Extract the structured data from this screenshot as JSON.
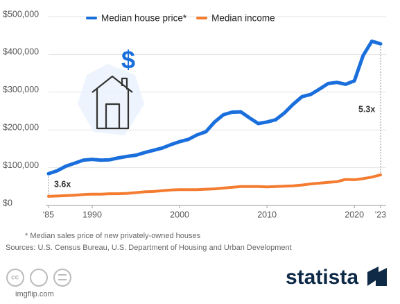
{
  "chart_data": {
    "type": "line",
    "x": [
      1985,
      1986,
      1987,
      1988,
      1989,
      1990,
      1991,
      1992,
      1993,
      1994,
      1995,
      1996,
      1997,
      1998,
      1999,
      2000,
      2001,
      2002,
      2003,
      2004,
      2005,
      2006,
      2007,
      2008,
      2009,
      2010,
      2011,
      2012,
      2013,
      2014,
      2015,
      2016,
      2017,
      2018,
      2019,
      2020,
      2021,
      2022,
      2023
    ],
    "series": [
      {
        "name": "Median house price*",
        "color": "#1a6fdc",
        "values": [
          84000,
          92000,
          104000,
          112000,
          120000,
          122000,
          120000,
          121000,
          126000,
          130000,
          133000,
          140000,
          146000,
          152000,
          161000,
          169000,
          175000,
          187000,
          195000,
          221000,
          240000,
          247000,
          248000,
          232000,
          217000,
          221000,
          227000,
          245000,
          268000,
          288000,
          294000,
          308000,
          323000,
          326000,
          321000,
          330000,
          397000,
          435000,
          428000
        ]
      },
      {
        "name": "Median income",
        "color": "#f47c30",
        "values": [
          24000,
          25000,
          26000,
          27000,
          29000,
          30000,
          30000,
          31000,
          31000,
          32000,
          34000,
          36000,
          37000,
          39000,
          41000,
          42000,
          42000,
          42000,
          43000,
          44000,
          46000,
          48000,
          50000,
          50000,
          50000,
          49000,
          50000,
          51000,
          52000,
          54000,
          57000,
          59000,
          61000,
          63000,
          69000,
          68000,
          71000,
          75000,
          81000
        ]
      }
    ],
    "xlim": [
      1985,
      2023
    ],
    "xticks": [
      {
        "value": 1985,
        "label": "'85"
      },
      1990,
      2000,
      2010,
      2020,
      {
        "value": 2023,
        "label": "'23"
      }
    ],
    "ylim": [
      0,
      500000
    ],
    "yticks": [
      {
        "value": 0,
        "label": "$0"
      },
      {
        "value": 100000,
        "label": "$100,000"
      },
      {
        "value": 200000,
        "label": "$200,000"
      },
      {
        "value": 300000,
        "label": "$300,000"
      },
      {
        "value": 400000,
        "label": "$400,000"
      },
      {
        "value": 500000,
        "label": "$500,000"
      }
    ],
    "grid": true,
    "annotations": [
      "3.6x",
      "5.3x"
    ],
    "footnote": "* Median sales price of new privately-owned houses",
    "source": "Sources: U.S. Census Bureau, U.S. Department of Housing and Urban Development",
    "brand": "statista",
    "watermark": "imgflip.com"
  }
}
